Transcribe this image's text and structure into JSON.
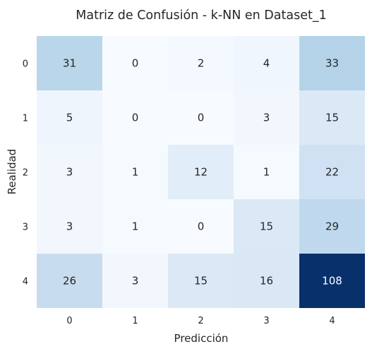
{
  "chart_data": {
    "type": "heatmap",
    "title": "Matriz de Confusión - k-NN en Dataset_1",
    "xlabel": "Predicción",
    "ylabel": "Realidad",
    "x_categories": [
      "0",
      "1",
      "2",
      "3",
      "4"
    ],
    "y_categories": [
      "0",
      "1",
      "2",
      "3",
      "4"
    ],
    "values": [
      [
        31,
        0,
        2,
        4,
        33
      ],
      [
        5,
        0,
        0,
        3,
        15
      ],
      [
        3,
        1,
        12,
        1,
        22
      ],
      [
        3,
        1,
        0,
        15,
        29
      ],
      [
        26,
        3,
        15,
        16,
        108
      ]
    ],
    "colormap": "Blues",
    "color_range": [
      0,
      108
    ],
    "colorbar": false,
    "annotated": true
  }
}
